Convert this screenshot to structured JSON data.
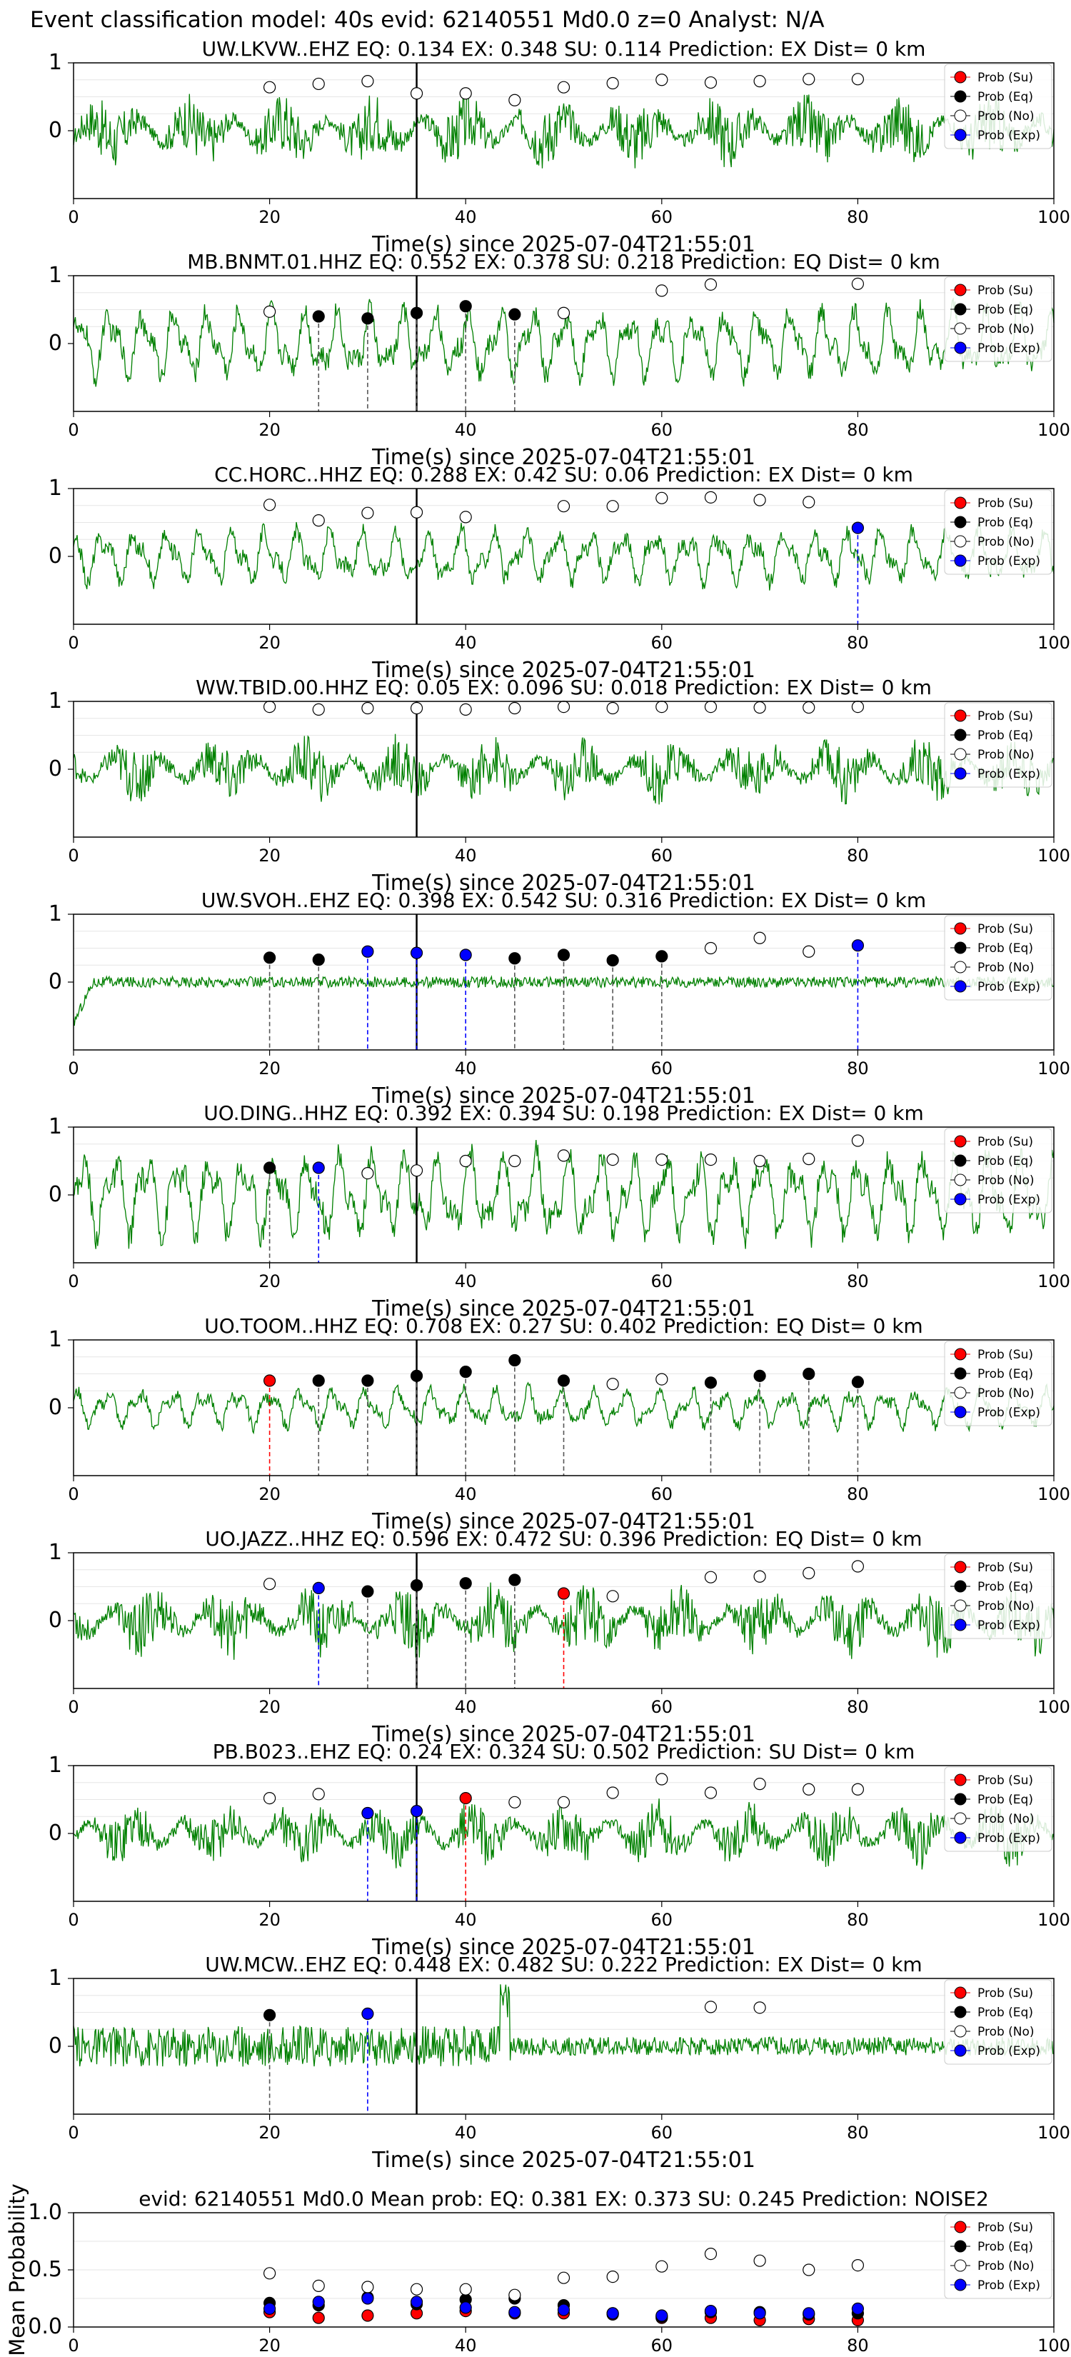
{
  "figure_title": "Event classification model: 40s evid: 62140551 Md0.0 z=0 Analyst: N/A",
  "colors": {
    "waveform": "#008000",
    "su": "#ff0000",
    "eq": "#000000",
    "no": "#ffffff",
    "exp": "#0000ff",
    "origin_line": "#000000"
  },
  "legend_labels": [
    "Prob (Su)",
    "Prob (Eq)",
    "Prob (No)",
    "Prob (Exp)"
  ],
  "chart_data": [
    {
      "type": "line",
      "title": "UW.LKVW..EHZ   EQ: 0.134  EX: 0.348  SU: 0.114   Prediction: EX    Dist= 0 km",
      "xlabel": "Time(s) since 2025-07-04T21:55:01",
      "ylabel": "",
      "xlim": [
        0,
        100
      ],
      "ylim": [
        -1,
        1
      ],
      "xticks": [
        0,
        20,
        40,
        60,
        80,
        100
      ],
      "yticks": [
        0,
        1
      ],
      "origin_time": 35,
      "legend": "top-right",
      "waveform": {
        "style": "noisy",
        "amplitude": 0.45
      },
      "markers": [
        {
          "x": 20,
          "y": 0.64,
          "cls": "No"
        },
        {
          "x": 25,
          "y": 0.69,
          "cls": "No"
        },
        {
          "x": 30,
          "y": 0.73,
          "cls": "No"
        },
        {
          "x": 35,
          "y": 0.55,
          "cls": "No"
        },
        {
          "x": 40,
          "y": 0.55,
          "cls": "No"
        },
        {
          "x": 45,
          "y": 0.45,
          "cls": "No"
        },
        {
          "x": 50,
          "y": 0.64,
          "cls": "No"
        },
        {
          "x": 55,
          "y": 0.7,
          "cls": "No"
        },
        {
          "x": 60,
          "y": 0.75,
          "cls": "No"
        },
        {
          "x": 65,
          "y": 0.71,
          "cls": "No"
        },
        {
          "x": 70,
          "y": 0.73,
          "cls": "No"
        },
        {
          "x": 75,
          "y": 0.76,
          "cls": "No"
        },
        {
          "x": 80,
          "y": 0.76,
          "cls": "No"
        }
      ]
    },
    {
      "type": "line",
      "title": "MB.BNMT.01.HHZ   EQ: 0.552  EX: 0.378  SU: 0.218   Prediction: EQ    Dist= 0 km",
      "xlabel": "Time(s) since 2025-07-04T21:55:01",
      "ylabel": "",
      "xlim": [
        0,
        100
      ],
      "ylim": [
        -1,
        1
      ],
      "xticks": [
        0,
        20,
        40,
        60,
        80,
        100
      ],
      "yticks": [
        0,
        1
      ],
      "origin_time": 35,
      "legend": "top-right",
      "waveform": {
        "style": "wavy",
        "amplitude": 0.45
      },
      "markers": [
        {
          "x": 20,
          "y": 0.47,
          "cls": "No"
        },
        {
          "x": 25,
          "y": 0.4,
          "cls": "Eq"
        },
        {
          "x": 30,
          "y": 0.37,
          "cls": "Eq"
        },
        {
          "x": 35,
          "y": 0.45,
          "cls": "Eq"
        },
        {
          "x": 40,
          "y": 0.55,
          "cls": "Eq"
        },
        {
          "x": 45,
          "y": 0.43,
          "cls": "Eq"
        },
        {
          "x": 50,
          "y": 0.45,
          "cls": "No"
        },
        {
          "x": 60,
          "y": 0.78,
          "cls": "No"
        },
        {
          "x": 65,
          "y": 0.87,
          "cls": "No"
        },
        {
          "x": 80,
          "y": 0.88,
          "cls": "No"
        }
      ]
    },
    {
      "type": "line",
      "title": "CC.HORC..HHZ   EQ: 0.288  EX: 0.42  SU: 0.06   Prediction: EX    Dist= 0 km",
      "xlabel": "Time(s) since 2025-07-04T21:55:01",
      "ylabel": "",
      "xlim": [
        0,
        100
      ],
      "ylim": [
        -1,
        1
      ],
      "xticks": [
        0,
        20,
        40,
        60,
        80,
        100
      ],
      "yticks": [
        0,
        1
      ],
      "origin_time": 35,
      "legend": "top-right",
      "waveform": {
        "style": "wavy",
        "amplitude": 0.35
      },
      "markers": [
        {
          "x": 20,
          "y": 0.76,
          "cls": "No"
        },
        {
          "x": 25,
          "y": 0.53,
          "cls": "No"
        },
        {
          "x": 30,
          "y": 0.64,
          "cls": "No"
        },
        {
          "x": 35,
          "y": 0.65,
          "cls": "No"
        },
        {
          "x": 40,
          "y": 0.58,
          "cls": "No"
        },
        {
          "x": 50,
          "y": 0.74,
          "cls": "No"
        },
        {
          "x": 55,
          "y": 0.74,
          "cls": "No"
        },
        {
          "x": 60,
          "y": 0.86,
          "cls": "No"
        },
        {
          "x": 65,
          "y": 0.87,
          "cls": "No"
        },
        {
          "x": 70,
          "y": 0.83,
          "cls": "No"
        },
        {
          "x": 75,
          "y": 0.8,
          "cls": "No"
        },
        {
          "x": 80,
          "y": 0.42,
          "cls": "Exp"
        }
      ]
    },
    {
      "type": "line",
      "title": "WW.TBID.00.HHZ   EQ: 0.05  EX: 0.096  SU: 0.018   Prediction: EX    Dist= 0 km",
      "xlabel": "Time(s) since 2025-07-04T21:55:01",
      "ylabel": "",
      "xlim": [
        0,
        100
      ],
      "ylim": [
        -1,
        1
      ],
      "xticks": [
        0,
        20,
        40,
        60,
        80,
        100
      ],
      "yticks": [
        0,
        1
      ],
      "origin_time": 35,
      "legend": "top-right",
      "waveform": {
        "style": "noisy",
        "amplitude": 0.4
      },
      "markers": [
        {
          "x": 20,
          "y": 0.92,
          "cls": "No"
        },
        {
          "x": 25,
          "y": 0.88,
          "cls": "No"
        },
        {
          "x": 30,
          "y": 0.9,
          "cls": "No"
        },
        {
          "x": 35,
          "y": 0.9,
          "cls": "No"
        },
        {
          "x": 40,
          "y": 0.88,
          "cls": "No"
        },
        {
          "x": 45,
          "y": 0.9,
          "cls": "No"
        },
        {
          "x": 50,
          "y": 0.92,
          "cls": "No"
        },
        {
          "x": 55,
          "y": 0.9,
          "cls": "No"
        },
        {
          "x": 60,
          "y": 0.92,
          "cls": "No"
        },
        {
          "x": 65,
          "y": 0.92,
          "cls": "No"
        },
        {
          "x": 70,
          "y": 0.91,
          "cls": "No"
        },
        {
          "x": 75,
          "y": 0.91,
          "cls": "No"
        },
        {
          "x": 80,
          "y": 0.92,
          "cls": "No"
        }
      ]
    },
    {
      "type": "line",
      "title": "UW.SVOH..EHZ   EQ: 0.398  EX: 0.542  SU: 0.316   Prediction: EX    Dist= 0 km",
      "xlabel": "Time(s) since 2025-07-04T21:55:01",
      "ylabel": "",
      "xlim": [
        0,
        100
      ],
      "ylim": [
        -1,
        1
      ],
      "xticks": [
        0,
        20,
        40,
        60,
        80,
        100
      ],
      "yticks": [
        0,
        1
      ],
      "origin_time": 35,
      "legend": "top-right",
      "waveform": {
        "style": "flat",
        "amplitude": 0.08
      },
      "markers": [
        {
          "x": 20,
          "y": 0.36,
          "cls": "Eq"
        },
        {
          "x": 25,
          "y": 0.33,
          "cls": "Eq"
        },
        {
          "x": 30,
          "y": 0.45,
          "cls": "Exp"
        },
        {
          "x": 35,
          "y": 0.43,
          "cls": "Exp"
        },
        {
          "x": 40,
          "y": 0.4,
          "cls": "Exp"
        },
        {
          "x": 45,
          "y": 0.35,
          "cls": "Eq"
        },
        {
          "x": 50,
          "y": 0.4,
          "cls": "Eq"
        },
        {
          "x": 55,
          "y": 0.32,
          "cls": "Eq"
        },
        {
          "x": 60,
          "y": 0.38,
          "cls": "Eq"
        },
        {
          "x": 65,
          "y": 0.5,
          "cls": "No"
        },
        {
          "x": 70,
          "y": 0.65,
          "cls": "No"
        },
        {
          "x": 75,
          "y": 0.45,
          "cls": "No"
        },
        {
          "x": 80,
          "y": 0.54,
          "cls": "Exp"
        }
      ]
    },
    {
      "type": "line",
      "title": "UO.DING..HHZ   EQ: 0.392  EX: 0.394  SU: 0.198   Prediction: EX    Dist= 0 km",
      "xlabel": "Time(s) since 2025-07-04T21:55:01",
      "ylabel": "",
      "xlim": [
        0,
        100
      ],
      "ylim": [
        -1,
        1
      ],
      "xticks": [
        0,
        20,
        40,
        60,
        80,
        100
      ],
      "yticks": [
        0,
        1
      ],
      "origin_time": 35,
      "legend": "top-right",
      "waveform": {
        "style": "wavy",
        "amplitude": 0.55
      },
      "markers": [
        {
          "x": 20,
          "y": 0.4,
          "cls": "Eq"
        },
        {
          "x": 25,
          "y": 0.4,
          "cls": "Exp"
        },
        {
          "x": 30,
          "y": 0.32,
          "cls": "No"
        },
        {
          "x": 35,
          "y": 0.36,
          "cls": "No"
        },
        {
          "x": 40,
          "y": 0.5,
          "cls": "No"
        },
        {
          "x": 45,
          "y": 0.5,
          "cls": "No"
        },
        {
          "x": 50,
          "y": 0.58,
          "cls": "No"
        },
        {
          "x": 55,
          "y": 0.52,
          "cls": "No"
        },
        {
          "x": 60,
          "y": 0.52,
          "cls": "No"
        },
        {
          "x": 65,
          "y": 0.52,
          "cls": "No"
        },
        {
          "x": 70,
          "y": 0.5,
          "cls": "No"
        },
        {
          "x": 75,
          "y": 0.53,
          "cls": "No"
        },
        {
          "x": 80,
          "y": 0.8,
          "cls": "No"
        }
      ]
    },
    {
      "type": "line",
      "title": "UO.TOOM..HHZ   EQ: 0.708  EX: 0.27  SU: 0.402   Prediction: EQ    Dist= 0 km",
      "xlabel": "Time(s) since 2025-07-04T21:55:01",
      "ylabel": "",
      "xlim": [
        0,
        100
      ],
      "ylim": [
        -1,
        1
      ],
      "xticks": [
        0,
        20,
        40,
        60,
        80,
        100
      ],
      "yticks": [
        0,
        1
      ],
      "origin_time": 35,
      "legend": "top-right",
      "waveform": {
        "style": "wavy",
        "amplitude": 0.25
      },
      "markers": [
        {
          "x": 20,
          "y": 0.4,
          "cls": "Su"
        },
        {
          "x": 25,
          "y": 0.4,
          "cls": "Eq"
        },
        {
          "x": 30,
          "y": 0.4,
          "cls": "Eq"
        },
        {
          "x": 35,
          "y": 0.47,
          "cls": "Eq"
        },
        {
          "x": 40,
          "y": 0.53,
          "cls": "Eq"
        },
        {
          "x": 45,
          "y": 0.7,
          "cls": "Eq"
        },
        {
          "x": 50,
          "y": 0.4,
          "cls": "Eq"
        },
        {
          "x": 55,
          "y": 0.35,
          "cls": "No"
        },
        {
          "x": 60,
          "y": 0.42,
          "cls": "No"
        },
        {
          "x": 65,
          "y": 0.37,
          "cls": "Eq"
        },
        {
          "x": 70,
          "y": 0.47,
          "cls": "Eq"
        },
        {
          "x": 75,
          "y": 0.5,
          "cls": "Eq"
        },
        {
          "x": 80,
          "y": 0.38,
          "cls": "Eq"
        }
      ]
    },
    {
      "type": "line",
      "title": "UO.JAZZ..HHZ   EQ: 0.596  EX: 0.472  SU: 0.396   Prediction: EQ    Dist= 0 km",
      "xlabel": "Time(s) since 2025-07-04T21:55:01",
      "ylabel": "",
      "xlim": [
        0,
        100
      ],
      "ylim": [
        -1,
        1
      ],
      "xticks": [
        0,
        20,
        40,
        60,
        80,
        100
      ],
      "yticks": [
        0,
        1
      ],
      "origin_time": 35,
      "legend": "top-right",
      "waveform": {
        "style": "noisy",
        "amplitude": 0.45
      },
      "markers": [
        {
          "x": 20,
          "y": 0.54,
          "cls": "No"
        },
        {
          "x": 25,
          "y": 0.48,
          "cls": "Exp"
        },
        {
          "x": 30,
          "y": 0.43,
          "cls": "Eq"
        },
        {
          "x": 35,
          "y": 0.52,
          "cls": "Eq"
        },
        {
          "x": 40,
          "y": 0.55,
          "cls": "Eq"
        },
        {
          "x": 45,
          "y": 0.6,
          "cls": "Eq"
        },
        {
          "x": 50,
          "y": 0.4,
          "cls": "Su"
        },
        {
          "x": 55,
          "y": 0.36,
          "cls": "No"
        },
        {
          "x": 65,
          "y": 0.64,
          "cls": "No"
        },
        {
          "x": 70,
          "y": 0.65,
          "cls": "No"
        },
        {
          "x": 75,
          "y": 0.7,
          "cls": "No"
        },
        {
          "x": 80,
          "y": 0.8,
          "cls": "No"
        }
      ]
    },
    {
      "type": "line",
      "title": "PB.B023..EHZ   EQ: 0.24  EX: 0.324  SU: 0.502   Prediction: SU    Dist= 0 km",
      "xlabel": "Time(s) since 2025-07-04T21:55:01",
      "ylabel": "",
      "xlim": [
        0,
        100
      ],
      "ylim": [
        -1,
        1
      ],
      "xticks": [
        0,
        20,
        40,
        60,
        80,
        100
      ],
      "yticks": [
        0,
        1
      ],
      "origin_time": 35,
      "legend": "top-right",
      "waveform": {
        "style": "noisy",
        "amplitude": 0.4
      },
      "markers": [
        {
          "x": 20,
          "y": 0.52,
          "cls": "No"
        },
        {
          "x": 25,
          "y": 0.58,
          "cls": "No"
        },
        {
          "x": 30,
          "y": 0.3,
          "cls": "Exp"
        },
        {
          "x": 35,
          "y": 0.33,
          "cls": "Exp"
        },
        {
          "x": 40,
          "y": 0.52,
          "cls": "Su"
        },
        {
          "x": 45,
          "y": 0.46,
          "cls": "No"
        },
        {
          "x": 50,
          "y": 0.46,
          "cls": "No"
        },
        {
          "x": 55,
          "y": 0.6,
          "cls": "No"
        },
        {
          "x": 60,
          "y": 0.8,
          "cls": "No"
        },
        {
          "x": 65,
          "y": 0.6,
          "cls": "No"
        },
        {
          "x": 70,
          "y": 0.73,
          "cls": "No"
        },
        {
          "x": 75,
          "y": 0.65,
          "cls": "No"
        },
        {
          "x": 80,
          "y": 0.65,
          "cls": "No"
        }
      ]
    },
    {
      "type": "line",
      "title": "UW.MCW..EHZ   EQ: 0.448  EX: 0.482  SU: 0.222   Prediction: EX    Dist= 0 km",
      "xlabel": "Time(s) since 2025-07-04T21:55:01",
      "ylabel": "",
      "xlim": [
        0,
        100
      ],
      "ylim": [
        -1,
        1
      ],
      "xticks": [
        0,
        20,
        40,
        60,
        80,
        100
      ],
      "yticks": [
        0,
        1
      ],
      "origin_time": 35,
      "legend": "top-right",
      "waveform": {
        "style": "decay",
        "amplitude": 0.3
      },
      "markers": [
        {
          "x": 20,
          "y": 0.46,
          "cls": "Eq"
        },
        {
          "x": 30,
          "y": 0.48,
          "cls": "Exp"
        },
        {
          "x": 65,
          "y": 0.58,
          "cls": "No"
        },
        {
          "x": 70,
          "y": 0.57,
          "cls": "No"
        }
      ]
    },
    {
      "type": "scatter",
      "title": "evid: 62140551  Md0.0    Mean prob:    EQ: 0.381  EX: 0.373  SU: 0.245    Prediction: NOISE2",
      "xlabel": "",
      "ylabel": "Mean Probability",
      "xlim": [
        0,
        100
      ],
      "ylim": [
        0,
        1.0
      ],
      "xticks": [
        0,
        20,
        40,
        60,
        80,
        100
      ],
      "yticks": [
        0.0,
        0.5,
        1.0
      ],
      "ytick_labels": [
        "0.0",
        "0.5",
        "1.0"
      ],
      "legend": "top-right",
      "x": [
        20,
        25,
        30,
        35,
        40,
        45,
        50,
        55,
        60,
        65,
        70,
        75,
        80
      ],
      "series": [
        {
          "name": "Prob (Su)",
          "cls": "Su",
          "values": [
            0.13,
            0.08,
            0.1,
            0.12,
            0.14,
            0.12,
            0.12,
            0.11,
            0.08,
            0.08,
            0.06,
            0.07,
            0.06
          ]
        },
        {
          "name": "Prob (Eq)",
          "cls": "Eq",
          "values": [
            0.21,
            0.19,
            0.26,
            0.2,
            0.24,
            0.25,
            0.19,
            0.12,
            0.09,
            0.13,
            0.13,
            0.11,
            0.12
          ]
        },
        {
          "name": "Prob (No)",
          "cls": "No",
          "values": [
            0.47,
            0.36,
            0.35,
            0.33,
            0.33,
            0.28,
            0.43,
            0.44,
            0.53,
            0.64,
            0.58,
            0.5,
            0.54
          ]
        },
        {
          "name": "Prob (Exp)",
          "cls": "Exp",
          "values": [
            0.16,
            0.22,
            0.25,
            0.22,
            0.17,
            0.13,
            0.15,
            0.12,
            0.1,
            0.14,
            0.12,
            0.12,
            0.16
          ]
        }
      ]
    }
  ]
}
